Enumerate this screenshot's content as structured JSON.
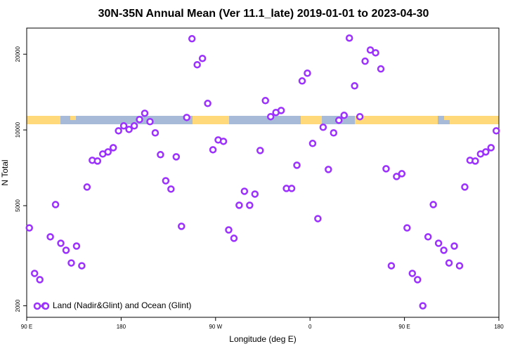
{
  "chart_data": {
    "type": "scatter",
    "title": "30N-35N Annual Mean (Ver 11.1_late)   2019-01-01 to 2023-04-30",
    "x_label": "Longitude (deg E)",
    "y_label": "N Total",
    "xlim": [
      90,
      540
    ],
    "xticks": [
      {
        "value": 90,
        "label": "90 E"
      },
      {
        "value": 180,
        "label": "180"
      },
      {
        "value": 270,
        "label": "90 W"
      },
      {
        "value": 360,
        "label": "0"
      },
      {
        "value": 450,
        "label": "90 E"
      },
      {
        "value": 540,
        "label": "180"
      }
    ],
    "ylim": [
      1800,
      25400
    ],
    "yticks": [
      2000,
      5000,
      10000,
      20000
    ],
    "log_y": true,
    "legend": "bottom-left",
    "x": [
      92.5,
      97.5,
      102.5,
      107.5,
      112.5,
      117.5,
      122.5,
      127.5,
      132.5,
      137.5,
      142.5,
      147.5,
      152.5,
      157.5,
      162.5,
      167.5,
      172.5,
      177.5,
      182.5,
      187.5,
      192.5,
      197.5,
      202.5,
      207.5,
      212.5,
      217.5,
      222.5,
      227.5,
      232.5,
      237.5,
      242.5,
      247.5,
      252.5,
      257.5,
      262.5,
      267.5,
      272.5,
      277.5,
      282.5,
      287.5,
      292.5,
      297.5,
      302.5,
      307.5,
      312.5,
      317.5,
      322.5,
      327.5,
      332.5,
      337.5,
      342.5,
      347.5,
      352.5,
      357.5,
      362.5,
      367.5,
      372.5,
      377.5,
      382.5,
      387.5,
      392.5,
      397.5,
      402.5,
      407.5,
      412.5,
      417.5,
      422.5,
      427.5,
      432.5,
      437.5,
      442.5,
      447.5,
      452.5,
      457.5,
      462.5,
      467.5,
      472.5,
      477.5,
      482.5,
      487.5,
      492.5,
      497.5,
      502.5,
      507.5,
      512.5,
      517.5,
      522.5,
      527.5,
      532.5,
      537.5
    ],
    "series": [
      {
        "name": "Land (Nadir&Glint) and Ocean (Glint)",
        "color": "#9b30ff",
        "values": [
          4080,
          2690,
          2540,
          2000,
          3760,
          5050,
          3545,
          3325,
          2960,
          3455,
          2885,
          5930,
          7575,
          7525,
          8025,
          8180,
          8500,
          9920,
          10380,
          10050,
          10380,
          11000,
          11650,
          10790,
          9735,
          7975,
          6280,
          5820,
          7820,
          4140,
          11210,
          23040,
          18160,
          19240,
          12750,
          8340,
          9125,
          9010,
          4005,
          3710,
          5020,
          5705,
          5020,
          5560,
          8285,
          13080,
          11290,
          11730,
          11950,
          5855,
          5855,
          7240,
          15660,
          16810,
          8840,
          4440,
          10250,
          6965,
          9735,
          10925,
          11430,
          23180,
          14970,
          11290,
          18760,
          20780,
          20260,
          17480,
          7010,
          2885,
          6530,
          6700,
          4080,
          2690,
          2540,
          2000,
          3760,
          5050,
          3545,
          3325,
          2960,
          3455,
          2885,
          5930,
          7575,
          7525,
          8025,
          8180,
          8500,
          9920
        ]
      }
    ]
  }
}
